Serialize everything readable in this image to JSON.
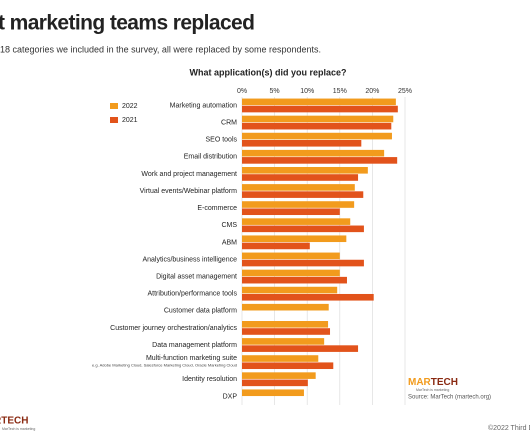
{
  "header": {
    "title": "t marketing teams replaced",
    "subtitle": "18 categories we included in the survey, all were replaced by some respondents."
  },
  "chart_data": {
    "type": "bar",
    "orientation": "horizontal",
    "title": "What application(s) did you replace?",
    "categories": [
      "Marketing automation",
      "CRM",
      "SEO tools",
      "Email distribution",
      "Work and project management",
      "Virtual events/Webinar platform",
      "E-commerce",
      "CMS",
      "ABM",
      "Analytics/business intelligence",
      "Digital asset management",
      "Attribution/performance tools",
      "Customer data platform",
      "Customer journey orchestration/analytics",
      "Data management platform",
      "Multi-function marketing suite",
      "Identity resolution",
      "DXP"
    ],
    "annotations": [
      "e.g. Adobe Marketing Cloud, Salesforce Marketing Cloud, Oracle Marketing Cloud"
    ],
    "series": [
      {
        "name": "2022",
        "color": "#f29b1d",
        "values": [
          23.6,
          23.2,
          23.0,
          21.8,
          19.3,
          17.3,
          17.2,
          16.6,
          16.0,
          15.0,
          15.0,
          14.6,
          13.3,
          13.2,
          12.6,
          11.7,
          11.3,
          9.5
        ]
      },
      {
        "name": "2021",
        "color": "#e2531b",
        "values": [
          23.9,
          22.9,
          18.3,
          23.8,
          17.8,
          18.6,
          15.0,
          18.7,
          10.4,
          18.7,
          16.1,
          20.2,
          null,
          13.5,
          17.8,
          14.0,
          10.1,
          null
        ]
      }
    ],
    "xlim": [
      0,
      25
    ],
    "xticks": [
      {
        "value": 0,
        "label": "0%"
      },
      {
        "value": 5,
        "label": "5%"
      },
      {
        "value": 10,
        "label": "10%"
      },
      {
        "value": 15,
        "label": "15%"
      },
      {
        "value": 20,
        "label": "20%"
      },
      {
        "value": 25,
        "label": "25%"
      }
    ],
    "grid": true,
    "legend": "left",
    "source": "Source: MarTech (martech.org)"
  },
  "logo": {
    "parts": [
      "MAR",
      "TECH"
    ],
    "tagline": "MarTech is marketing"
  },
  "footer": {
    "logo_cropped": "RTECH",
    "tagline": "MarTech is marketing",
    "copyright": "©2022 Third D"
  }
}
